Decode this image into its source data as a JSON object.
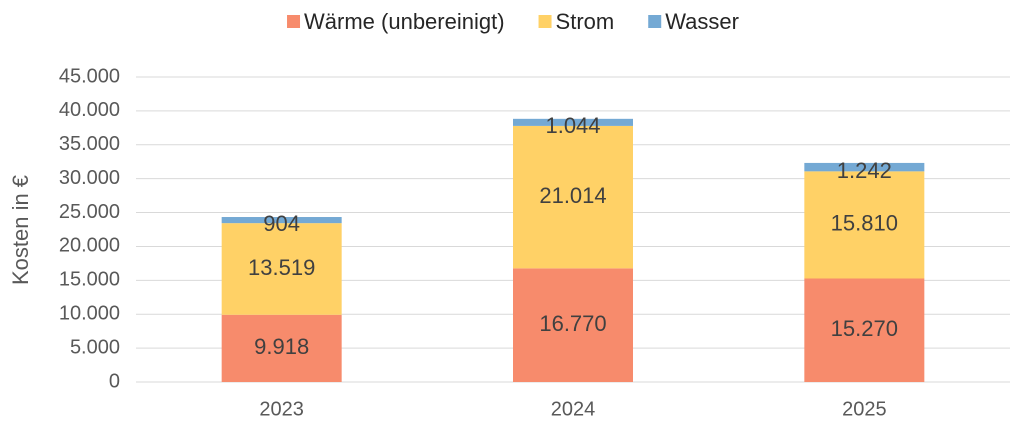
{
  "chart_data": {
    "type": "stacked_bar",
    "categories": [
      "2023",
      "2024",
      "2025"
    ],
    "series": [
      {
        "name": "Wärme (unbereinigt)",
        "color": "#f78b6c",
        "values": [
          9918,
          16770,
          15270
        ],
        "value_labels": [
          "9.918",
          "16.770",
          "15.270"
        ]
      },
      {
        "name": "Strom",
        "color": "#ffd166",
        "values": [
          13519,
          21014,
          15810
        ],
        "value_labels": [
          "13.519",
          "21.014",
          "15.810"
        ]
      },
      {
        "name": "Wasser",
        "color": "#74a9d4",
        "values": [
          904,
          1044,
          1242
        ],
        "value_labels": [
          "904",
          "1.044",
          "1.242"
        ]
      }
    ],
    "y_label": "Kosten in €",
    "ylim": [
      0,
      45000
    ],
    "yticks": [
      0,
      {
        "value": 5000,
        "label": "5.000"
      },
      {
        "value": 10000,
        "label": "10.000"
      },
      {
        "value": 15000,
        "label": "15.000"
      },
      {
        "value": 20000,
        "label": "20.000"
      },
      {
        "value": 25000,
        "label": "25.000"
      },
      {
        "value": 30000,
        "label": "30.000"
      },
      {
        "value": 35000,
        "label": "35.000"
      },
      {
        "value": 40000,
        "label": "40.000"
      },
      {
        "value": 45000,
        "label": "45.000"
      }
    ],
    "grid": true,
    "legend": "top"
  }
}
